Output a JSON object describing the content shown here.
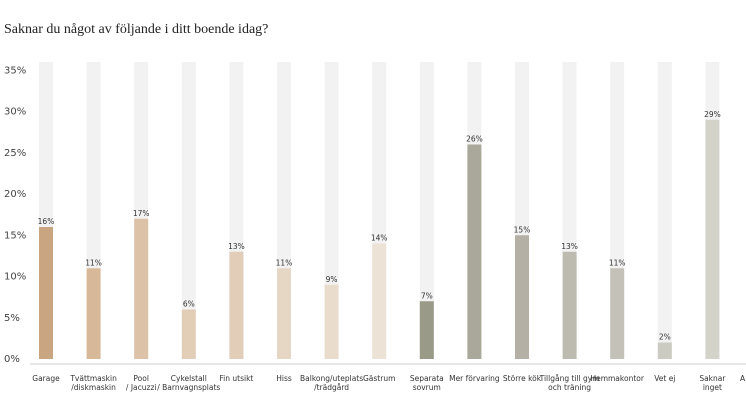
{
  "chart_data": {
    "type": "bar",
    "title": "Saknar du något av följande i ditt boende idag?",
    "categories": [
      [
        "Garage"
      ],
      [
        "Tvättmaskin",
        "/diskmaskin"
      ],
      [
        "Pool",
        "/ Jacuzzi"
      ],
      [
        "Cykelstall",
        "/ Barnvagnsplats"
      ],
      [
        "Fin utsikt"
      ],
      [
        "Hiss"
      ],
      [
        "Balkong/uteplats",
        "/trädgård"
      ],
      [
        "Gästrum"
      ],
      [
        "Separata",
        "sovrum"
      ],
      [
        "Mer förvaring"
      ],
      [
        "Större kök"
      ],
      [
        "Tillgång till gym",
        "och träning"
      ],
      [
        "Hemmakontor"
      ],
      [
        "Vet ej"
      ],
      [
        "Saknar",
        "inget"
      ],
      [
        "A"
      ]
    ],
    "values": [
      16,
      11,
      17,
      6,
      13,
      11,
      9,
      14,
      7,
      26,
      15,
      13,
      11,
      2,
      29,
      null
    ],
    "value_labels": [
      "16%",
      "11%",
      "17%",
      "6%",
      "13%",
      "11%",
      "9%",
      "14%",
      "7%",
      "26%",
      "15%",
      "13%",
      "11%",
      "2%",
      "29%",
      null
    ],
    "colors": [
      "#c9a582",
      "#d7b99a",
      "#dcc2a7",
      "#e2cdb6",
      "#e2cdb9",
      "#e6d6c4",
      "#eadccc",
      "#ede2d6",
      "#9a9a88",
      "#a9a89b",
      "#b5b0a6",
      "#bdbab0",
      "#c4c2b8",
      "#cccbc2",
      "#d4d3ca",
      "#d8d7ce"
    ],
    "track_color": "#f2f2f2",
    "ylim": [
      0,
      36
    ],
    "yticks": [
      {
        "value": 0,
        "label": "0%"
      },
      {
        "value": 5,
        "label": "5%"
      },
      {
        "value": 10,
        "label": "10%"
      },
      {
        "value": 15,
        "label": "15%"
      },
      {
        "value": 20,
        "label": "20%"
      },
      {
        "value": 25,
        "label": "25%"
      },
      {
        "value": 30,
        "label": "30%"
      },
      {
        "value": 35,
        "label": "35%"
      }
    ]
  }
}
